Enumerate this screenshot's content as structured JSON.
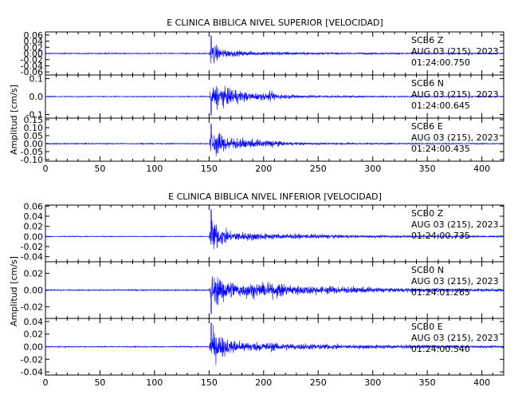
{
  "chart_data": [
    {
      "type": "line",
      "title": "E CLINICA BIBLICA NIVEL SUPERIOR [VELOCIDAD]",
      "ylabel": "Amplitud [cm/s]",
      "xlim": [
        0,
        420
      ],
      "x_ticks": [
        0,
        50,
        100,
        150,
        200,
        250,
        300,
        350,
        400
      ],
      "series_color": "#0000ff",
      "traces": [
        {
          "station": "SCB6",
          "component": "Z",
          "date_line": "AUG 03 (215), 2023",
          "time_line": "01:24:00.750",
          "ylim": [
            -0.07,
            0.07
          ],
          "y_ticks": [
            "0.06",
            "0.04",
            "0.02",
            "0.00",
            "-0.02",
            "-0.04",
            "-0.06"
          ],
          "y_tick_values": [
            0.06,
            0.04,
            0.02,
            0.0,
            -0.02,
            -0.04,
            -0.06
          ],
          "peak_amplitude": 0.06,
          "envelope": [
            [
              0,
              0.002
            ],
            [
              150,
              0.002
            ],
            [
              152,
              0.045
            ],
            [
              155,
              0.04
            ],
            [
              160,
              0.02
            ],
            [
              170,
              0.012
            ],
            [
              190,
              0.008
            ],
            [
              220,
              0.006
            ],
            [
              260,
              0.004
            ],
            [
              320,
              0.003
            ],
            [
              420,
              0.002
            ]
          ]
        },
        {
          "station": "SCB6",
          "component": "N",
          "date_line": "AUG 03 (215), 2023",
          "time_line": "01:24:00.645",
          "ylim": [
            -0.12,
            0.12
          ],
          "y_ticks": [
            "0.1",
            "0.0",
            "-0.1"
          ],
          "y_tick_values": [
            0.1,
            0.0,
            -0.1
          ],
          "peak_amplitude": 0.11,
          "envelope": [
            [
              0,
              0.003
            ],
            [
              150,
              0.003
            ],
            [
              152,
              0.06
            ],
            [
              158,
              0.07
            ],
            [
              165,
              0.06
            ],
            [
              175,
              0.045
            ],
            [
              185,
              0.03
            ],
            [
              200,
              0.022
            ],
            [
              208,
              0.03
            ],
            [
              215,
              0.015
            ],
            [
              250,
              0.008
            ],
            [
              320,
              0.004
            ],
            [
              420,
              0.003
            ]
          ]
        },
        {
          "station": "SCB6",
          "component": "E",
          "date_line": "AUG 03 (215), 2023",
          "time_line": "01:24:00.435",
          "ylim": [
            -0.11,
            0.16
          ],
          "y_ticks": [
            "0.15",
            "0.10",
            "0.05",
            "0.00",
            "-0.05",
            "-0.10"
          ],
          "y_tick_values": [
            0.15,
            0.1,
            0.05,
            0.0,
            -0.05,
            -0.1
          ],
          "peak_amplitude": 0.13,
          "envelope": [
            [
              0,
              0.004
            ],
            [
              150,
              0.004
            ],
            [
              152,
              0.1
            ],
            [
              158,
              0.08
            ],
            [
              165,
              0.05
            ],
            [
              180,
              0.035
            ],
            [
              200,
              0.025
            ],
            [
              210,
              0.03
            ],
            [
              220,
              0.012
            ],
            [
              260,
              0.007
            ],
            [
              320,
              0.005
            ],
            [
              420,
              0.004
            ]
          ]
        }
      ]
    },
    {
      "type": "line",
      "title": "E CLINICA BIBLICA NIVEL INFERIOR [VELOCIDAD]",
      "ylabel": "Amplitud [cm/s]",
      "xlim": [
        0,
        420
      ],
      "x_ticks": [
        0,
        50,
        100,
        150,
        200,
        250,
        300,
        350,
        400
      ],
      "series_color": "#0000ff",
      "traces": [
        {
          "station": "SCB0",
          "component": "Z",
          "date_line": "AUG 03 (215), 2023",
          "time_line": "01:24:00.735",
          "ylim": [
            -0.05,
            0.062
          ],
          "y_ticks": [
            "0.06",
            "0.04",
            "0.02",
            "0.00",
            "-0.02",
            "-0.04"
          ],
          "y_tick_values": [
            0.06,
            0.04,
            0.02,
            0.0,
            -0.02,
            -0.04
          ],
          "peak_amplitude": 0.056,
          "envelope": [
            [
              0,
              0.001
            ],
            [
              150,
              0.001
            ],
            [
              152,
              0.04
            ],
            [
              156,
              0.03
            ],
            [
              165,
              0.015
            ],
            [
              180,
              0.01
            ],
            [
              200,
              0.007
            ],
            [
              240,
              0.005
            ],
            [
              300,
              0.003
            ],
            [
              420,
              0.002
            ]
          ]
        },
        {
          "station": "SCB0",
          "component": "N",
          "date_line": "AUG 03 (215), 2023",
          "time_line": "01:24:01.265",
          "ylim": [
            -0.034,
            0.034
          ],
          "y_ticks": [
            "0.02",
            "0.00",
            "-0.02"
          ],
          "y_tick_values": [
            0.02,
            0.0,
            -0.02
          ],
          "peak_amplitude": 0.03,
          "envelope": [
            [
              0,
              0.0008
            ],
            [
              150,
              0.0008
            ],
            [
              152,
              0.022
            ],
            [
              160,
              0.018
            ],
            [
              175,
              0.012
            ],
            [
              200,
              0.009
            ],
            [
              210,
              0.01
            ],
            [
              240,
              0.006
            ],
            [
              270,
              0.005
            ],
            [
              320,
              0.003
            ],
            [
              420,
              0.002
            ]
          ]
        },
        {
          "station": "SCB0",
          "component": "E",
          "date_line": "AUG 03 (215), 2023",
          "time_line": "01:24:00.540",
          "ylim": [
            -0.045,
            0.045
          ],
          "y_ticks": [
            "0.04",
            "0.02",
            "0.00",
            "-0.02",
            "-0.04"
          ],
          "y_tick_values": [
            0.04,
            0.02,
            0.0,
            -0.02,
            -0.04
          ],
          "peak_amplitude": 0.04,
          "envelope": [
            [
              0,
              0.001
            ],
            [
              150,
              0.001
            ],
            [
              152,
              0.03
            ],
            [
              158,
              0.022
            ],
            [
              170,
              0.012
            ],
            [
              200,
              0.008
            ],
            [
              230,
              0.006
            ],
            [
              280,
              0.004
            ],
            [
              350,
              0.003
            ],
            [
              420,
              0.002
            ]
          ]
        }
      ]
    }
  ]
}
